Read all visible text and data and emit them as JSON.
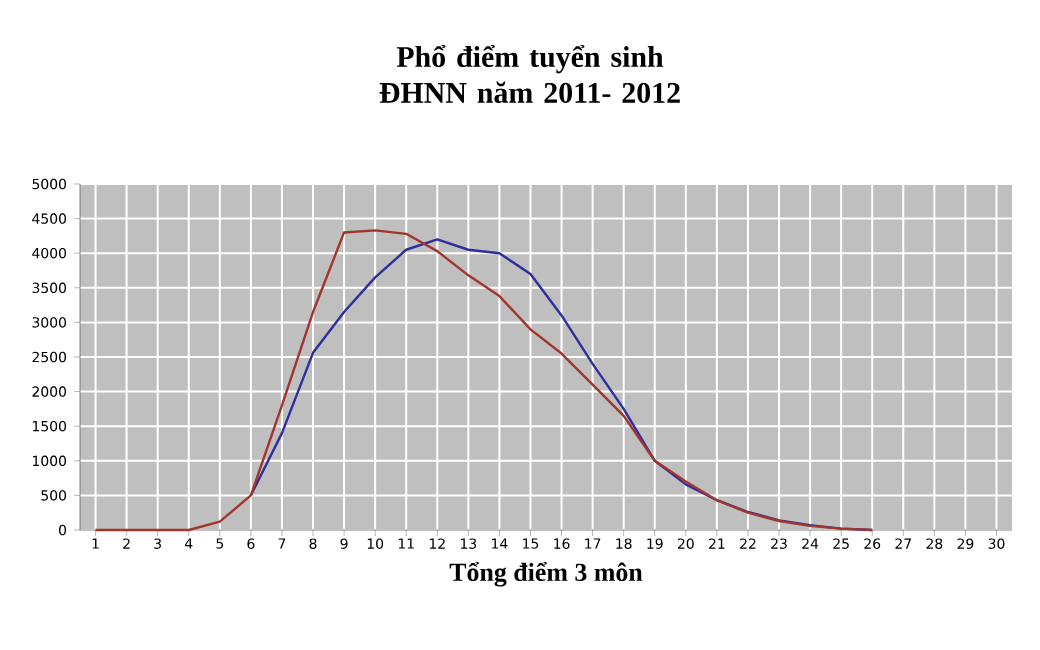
{
  "chart_data": {
    "type": "line",
    "title": "Phổ điểm tuyển sinh ĐHNN năm 2011- 2012",
    "xlabel": "Tổng điểm 3 môn",
    "categories": [
      "1",
      "2",
      "3",
      "4",
      "5",
      "6",
      "7",
      "8",
      "9",
      "10",
      "11",
      "12",
      "13",
      "14",
      "15",
      "16",
      "17",
      "18",
      "19",
      "20",
      "21",
      "22",
      "23",
      "24",
      "25",
      "26",
      "27",
      "28",
      "29",
      "30"
    ],
    "series": [
      {
        "color": "#a2352c",
        "values": [
          0,
          0,
          0,
          0,
          120,
          500,
          1800,
          3150,
          4300,
          4330,
          4280,
          4030,
          3680,
          3380,
          2900,
          2550,
          2100,
          1650,
          1000,
          700,
          430,
          250,
          130,
          60,
          20,
          0,
          null,
          null,
          null,
          null
        ]
      },
      {
        "color": "#2e2e9c",
        "values": [
          null,
          null,
          null,
          null,
          null,
          500,
          1400,
          2560,
          3150,
          3650,
          4050,
          4200,
          4050,
          4000,
          3700,
          3100,
          2400,
          1750,
          1000,
          660,
          430,
          260,
          140,
          70,
          20,
          0,
          null,
          null,
          null,
          null
        ]
      }
    ],
    "ylim": [
      0,
      5000
    ],
    "yticks": [
      0,
      500,
      1000,
      1500,
      2000,
      2500,
      3000,
      3500,
      4000,
      4500,
      5000
    ],
    "grid": true
  }
}
